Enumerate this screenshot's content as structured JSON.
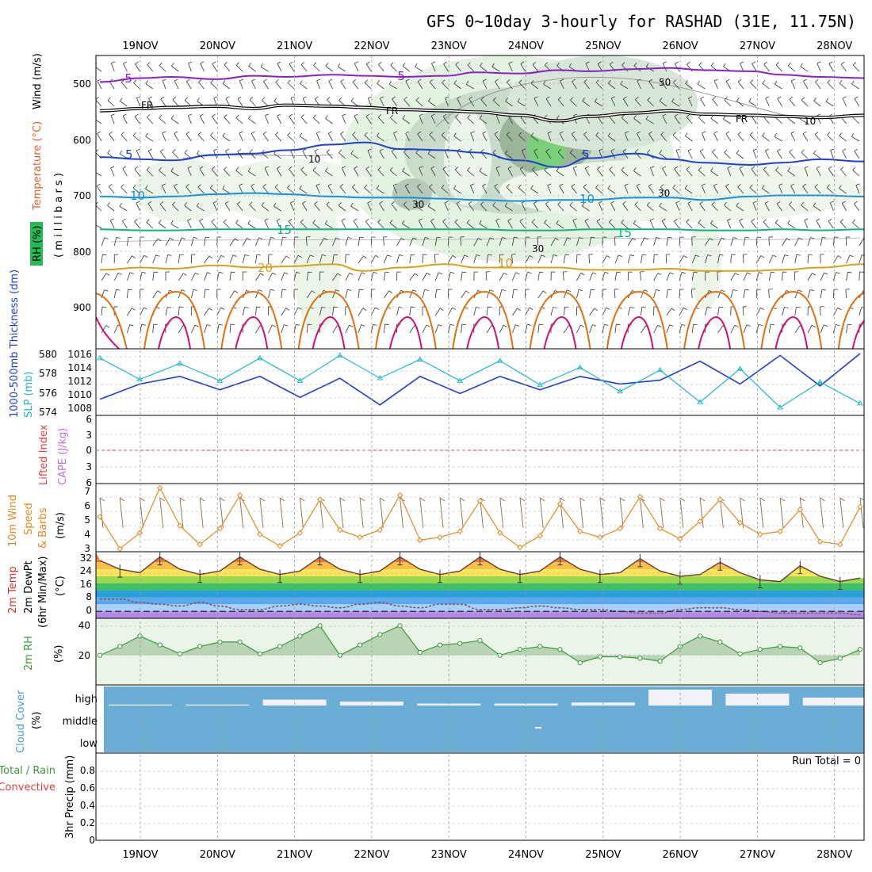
{
  "title": "GFS 0~10day 3-hourly for RASHAD (31E, 11.75N)",
  "days": [
    "19NOV",
    "20NOV",
    "21NOV",
    "22NOV",
    "23NOV",
    "24NOV",
    "25NOV",
    "26NOV",
    "27NOV",
    "28NOV"
  ],
  "colors": {
    "temp_neg5": "#8a1fc8",
    "temp_fr": "#000000",
    "temp_5": "#1f3fd0",
    "temp_10": "#1590e0",
    "temp_15": "#10b080",
    "temp_20": "#d8a020",
    "temp_25": "#e07010",
    "temp_30": "#d01070",
    "thickness": "#1f3fd0",
    "slp": "#20b8c8",
    "wind10m": "#e08a20",
    "rh2m": "#3a9a3a",
    "cloud": "#6aaed6",
    "zero_line": "#e04040"
  },
  "panels": {
    "upper": {
      "labels": {
        "wind": "Wind (m/s)",
        "temperature": "Temperature (°C)",
        "rh": "RH (%)",
        "vertical_axis": "( m i l l i b a r s )"
      },
      "ticks": [
        "500",
        "600",
        "700",
        "800",
        "900"
      ],
      "contour_labels": [
        "-5",
        "-5",
        "FR",
        "FR",
        "FR",
        "5",
        "5",
        "10",
        "10",
        "15",
        "15",
        "20",
        "10",
        "30",
        "30",
        "10",
        "50",
        "10",
        "30"
      ]
    },
    "slp": {
      "labels": {
        "thickness": "1000-500mb Thickness (dm)",
        "slp": "SLP (mb)"
      },
      "ticks_left": [
        "580",
        "578",
        "576",
        "574"
      ],
      "ticks_right": [
        "1016",
        "1014",
        "1012",
        "1010",
        "1008"
      ]
    },
    "cape": {
      "labels": {
        "lifted": "Lifted Index",
        "cape": "CAPE (J/kg)"
      },
      "ticks": [
        "6",
        "3",
        "0",
        "3",
        "6"
      ]
    },
    "wind10m": {
      "labels": {
        "line1": "10m Wind",
        "line2": "Speed",
        "line3": "& Barbs",
        "unit": "(m/s)"
      },
      "ticks": [
        "7",
        "6",
        "5",
        "4",
        "3"
      ]
    },
    "temp2m": {
      "labels": {
        "line1": "2m Temp",
        "line2": "2m DewPt",
        "line3": "(6hr Min/Max)",
        "unit": "(°C)"
      },
      "ticks": [
        "32",
        "24",
        "16",
        "8",
        "0"
      ]
    },
    "rh2m": {
      "labels": {
        "name": "2m RH",
        "unit": "(%)"
      },
      "ticks": [
        "40",
        "20"
      ]
    },
    "cloud": {
      "labels": {
        "name": "Cloud Cover",
        "unit": "(%)"
      },
      "levels": [
        "high",
        "middle",
        "low"
      ]
    },
    "precip": {
      "labels": {
        "total_rain": "Total / Rain",
        "convective": "Convective",
        "axis": "3hr Precip (mm)"
      },
      "ticks": [
        "0.8",
        "0.6",
        "0.4",
        "0.2",
        "0"
      ],
      "run_total": "Run Total = 0"
    }
  },
  "chart_data": [
    {
      "type": "line",
      "title": "Temperature (°C) contours",
      "x": [
        "18NOV18",
        "19NOV00",
        "19NOV12",
        "20NOV00",
        "20NOV12",
        "21NOV00",
        "21NOV12",
        "22NOV00",
        "22NOV12",
        "23NOV00",
        "23NOV12",
        "24NOV00",
        "24NOV12",
        "25NOV00",
        "25NOV12",
        "26NOV00",
        "26NOV12",
        "27NOV00",
        "27NOV12",
        "28NOV00",
        "28NOV06"
      ],
      "ylabel": "millibars",
      "ylim": [
        1000,
        450
      ],
      "series": [
        {
          "name": "-5",
          "values": [
            497,
            490,
            488,
            492,
            486,
            488,
            484,
            486,
            488,
            486,
            480,
            482,
            476,
            478,
            474,
            472,
            476,
            478,
            484,
            488,
            490
          ]
        },
        {
          "name": "FR",
          "values": [
            548,
            544,
            542,
            540,
            544,
            538,
            540,
            542,
            546,
            548,
            550,
            556,
            566,
            558,
            552,
            548,
            554,
            556,
            558,
            560,
            556
          ]
        },
        {
          "name": "5",
          "values": [
            630,
            634,
            636,
            626,
            624,
            618,
            608,
            604,
            616,
            618,
            622,
            636,
            648,
            632,
            624,
            634,
            640,
            644,
            640,
            634,
            638
          ]
        },
        {
          "name": "10",
          "values": [
            700,
            702,
            700,
            696,
            694,
            696,
            700,
            702,
            702,
            704,
            706,
            708,
            706,
            706,
            702,
            702,
            706,
            700,
            698,
            698,
            700
          ]
        },
        {
          "name": "15",
          "values": [
            758,
            760,
            760,
            758,
            758,
            758,
            758,
            758,
            758,
            758,
            758,
            760,
            760,
            758,
            758,
            758,
            760,
            760,
            758,
            760,
            758
          ]
        },
        {
          "name": "20",
          "values": [
            830,
            826,
            828,
            822,
            826,
            824,
            820,
            832,
            826,
            820,
            826,
            826,
            826,
            830,
            830,
            828,
            832,
            832,
            830,
            826,
            820
          ]
        }
      ]
    },
    {
      "type": "line",
      "title": "1000-500mb Thickness / SLP",
      "x": [
        "18NOV18",
        "19NOV06",
        "19NOV18",
        "20NOV06",
        "20NOV18",
        "21NOV06",
        "21NOV18",
        "22NOV06",
        "22NOV18",
        "23NOV06",
        "23NOV18",
        "24NOV06",
        "24NOV18",
        "25NOV06",
        "25NOV18",
        "26NOV06",
        "26NOV18",
        "27NOV06",
        "27NOV18",
        "28NOV06"
      ],
      "series": [
        {
          "name": "Thickness (dm)",
          "values": [
            575.2,
            576.8,
            577.6,
            576.2,
            577.6,
            575.4,
            577.4,
            574.6,
            577.6,
            575.8,
            577.6,
            576.2,
            577.6,
            576.8,
            577.2,
            579.2,
            576.8,
            579.8,
            576.6,
            580.0
          ]
        },
        {
          "name": "SLP (mb)",
          "values": [
            1015.6,
            1012.4,
            1014.8,
            1012.2,
            1015.6,
            1012.2,
            1016.0,
            1012.6,
            1015.4,
            1012.2,
            1015.2,
            1011.6,
            1014.2,
            1010.6,
            1013.8,
            1009.0,
            1014.0,
            1008.2,
            1012.0,
            1008.8
          ]
        }
      ],
      "ylim_thickness": [
        573.5,
        580.5
      ],
      "ylim_slp": [
        1007,
        1017
      ]
    },
    {
      "type": "line",
      "title": "10m Wind Speed",
      "x": [
        "18NOV18",
        "19NOV00",
        "19NOV06",
        "19NOV12",
        "19NOV18",
        "20NOV00",
        "20NOV06",
        "20NOV12",
        "20NOV18",
        "21NOV00",
        "21NOV06",
        "21NOV12",
        "21NOV18",
        "22NOV00",
        "22NOV06",
        "22NOV12",
        "22NOV18",
        "23NOV00",
        "23NOV06",
        "23NOV12",
        "23NOV18",
        "24NOV00",
        "24NOV06",
        "24NOV12",
        "24NOV18",
        "25NOV00",
        "25NOV06",
        "25NOV12",
        "25NOV18",
        "26NOV00",
        "26NOV06",
        "26NOV12",
        "26NOV18",
        "27NOV00",
        "27NOV06",
        "27NOV12",
        "27NOV18",
        "28NOV00",
        "28NOV06"
      ],
      "values": [
        4.9,
        2.7,
        3.8,
        6.9,
        4.3,
        3.0,
        4.1,
        6.4,
        3.7,
        2.9,
        3.8,
        6.1,
        4.0,
        3.5,
        4.0,
        6.4,
        3.3,
        3.5,
        3.9,
        6.0,
        3.8,
        2.8,
        3.6,
        5.8,
        3.9,
        3.5,
        4.1,
        6.3,
        4.1,
        3.4,
        4.6,
        6.1,
        4.5,
        3.7,
        3.9,
        5.4,
        3.2,
        3.0,
        5.6
      ],
      "ylabel": "(m/s)",
      "ylim": [
        2.5,
        7.2
      ]
    },
    {
      "type": "area",
      "title": "2m Temp / 2m DewPt",
      "x": [
        "18NOV18",
        "19NOV00",
        "19NOV06",
        "19NOV12",
        "19NOV18",
        "20NOV00",
        "20NOV06",
        "20NOV12",
        "20NOV18",
        "21NOV00",
        "21NOV06",
        "21NOV12",
        "21NOV18",
        "22NOV00",
        "22NOV06",
        "22NOV12",
        "22NOV18",
        "23NOV00",
        "23NOV06",
        "23NOV12",
        "23NOV18",
        "24NOV00",
        "24NOV06",
        "24NOV12",
        "24NOV18",
        "25NOV00",
        "25NOV06",
        "25NOV12",
        "25NOV18",
        "26NOV00",
        "26NOV06",
        "26NOV12",
        "26NOV18",
        "27NOV00",
        "27NOV06",
        "27NOV12",
        "27NOV18",
        "28NOV00",
        "28NOV06"
      ],
      "series": [
        {
          "name": "2m Temp",
          "values": [
            29,
            24,
            22,
            31,
            24,
            21,
            23,
            31,
            24,
            21,
            23,
            31,
            24,
            21,
            23,
            31,
            24,
            21,
            23,
            31,
            24,
            21,
            23,
            31,
            24,
            21,
            22,
            30,
            23,
            20,
            21,
            28,
            22,
            18,
            17,
            26,
            20,
            17,
            19
          ]
        },
        {
          "name": "2m DewPt",
          "values": [
            7,
            7,
            5,
            4,
            3,
            5,
            3,
            1,
            1,
            3,
            4,
            3,
            2,
            4,
            5,
            3,
            2,
            4,
            4,
            1,
            1,
            2,
            3,
            2,
            1,
            1,
            0,
            -1,
            -1,
            1,
            2,
            2,
            1,
            0,
            -1,
            -1,
            -1,
            -1,
            -2
          ]
        }
      ],
      "ylabel": "(°C)",
      "ylim": [
        -4,
        34
      ]
    },
    {
      "type": "area",
      "title": "2m RH",
      "x": [
        "18NOV18",
        "19NOV00",
        "19NOV06",
        "19NOV12",
        "19NOV18",
        "20NOV00",
        "20NOV06",
        "20NOV12",
        "20NOV18",
        "21NOV00",
        "21NOV06",
        "21NOV12",
        "21NOV18",
        "22NOV00",
        "22NOV06",
        "22NOV12",
        "22NOV18",
        "23NOV00",
        "23NOV06",
        "23NOV12",
        "23NOV18",
        "24NOV00",
        "24NOV06",
        "24NOV12",
        "24NOV18",
        "25NOV00",
        "25NOV06",
        "25NOV12",
        "25NOV18",
        "26NOV00",
        "26NOV06",
        "26NOV12",
        "26NOV18",
        "27NOV00",
        "27NOV06",
        "27NOV12",
        "27NOV18",
        "28NOV00",
        "28NOV06"
      ],
      "values": [
        20,
        26,
        33,
        27,
        21,
        26,
        29,
        29,
        21,
        26,
        33,
        40,
        20,
        27,
        34,
        40,
        22,
        27,
        28,
        30,
        20,
        24,
        26,
        24,
        15,
        19,
        19,
        18,
        16,
        26,
        33,
        29,
        21,
        24,
        26,
        25,
        15,
        18,
        24
      ],
      "ylabel": "(%)",
      "ylim": [
        0,
        45
      ]
    },
    {
      "type": "bar",
      "title": "Cloud Cover high (%)",
      "x": [
        "19NOV",
        "20NOV",
        "21NOV",
        "22NOV",
        "23NOV",
        "24NOV",
        "25NOV",
        "26NOV",
        "27NOV",
        "28NOV"
      ],
      "values": [
        5,
        5,
        30,
        20,
        10,
        10,
        15,
        80,
        60,
        40
      ],
      "ylim": [
        0,
        100
      ]
    },
    {
      "type": "bar",
      "title": "3hr Precip (mm)",
      "values": [
        0
      ],
      "ylim": [
        0,
        1.0
      ]
    }
  ]
}
